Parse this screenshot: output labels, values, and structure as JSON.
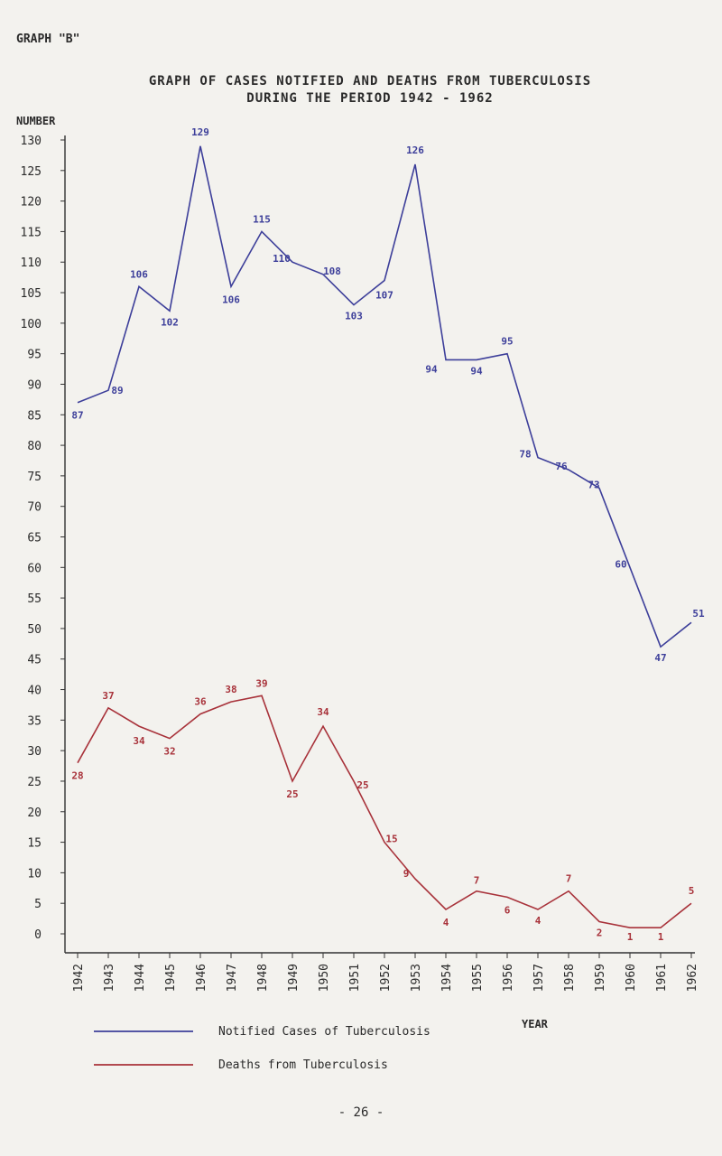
{
  "page": {
    "graph_id": "GRAPH \"B\"",
    "title_line1": "GRAPH OF CASES NOTIFIED AND DEATHS FROM TUBERCULOSIS",
    "title_line2": "DURING THE PERIOD 1942 - 1962",
    "page_number": "- 26 -"
  },
  "chart_data": {
    "type": "line",
    "ylabel": "NUMBER",
    "xlabel": "YEAR",
    "ylim": [
      0,
      130
    ],
    "yticks": [
      0,
      5,
      10,
      15,
      20,
      25,
      30,
      35,
      40,
      45,
      50,
      55,
      60,
      65,
      70,
      75,
      80,
      85,
      90,
      95,
      100,
      105,
      110,
      115,
      120,
      125,
      130
    ],
    "categories": [
      "1942",
      "1943",
      "1944",
      "1945",
      "1946",
      "1947",
      "1948",
      "1949",
      "1950",
      "1951",
      "1952",
      "1953",
      "1954",
      "1955",
      "1956",
      "1957",
      "1958",
      "1959",
      "1960",
      "1961",
      "1962"
    ],
    "grid": false,
    "legend_position": "bottom-left",
    "series": [
      {
        "name": "Notified Cases of Tuberculosis",
        "color": "#3d3f9a",
        "values": [
          87,
          89,
          106,
          102,
          129,
          106,
          115,
          110,
          108,
          103,
          107,
          126,
          94,
          94,
          95,
          78,
          76,
          73,
          60,
          47,
          51
        ]
      },
      {
        "name": "Deaths from Tuberculosis",
        "color": "#a8323a",
        "values": [
          28,
          37,
          34,
          32,
          36,
          38,
          39,
          25,
          34,
          25,
          15,
          9,
          4,
          7,
          6,
          4,
          7,
          2,
          1,
          1,
          5
        ]
      }
    ]
  }
}
